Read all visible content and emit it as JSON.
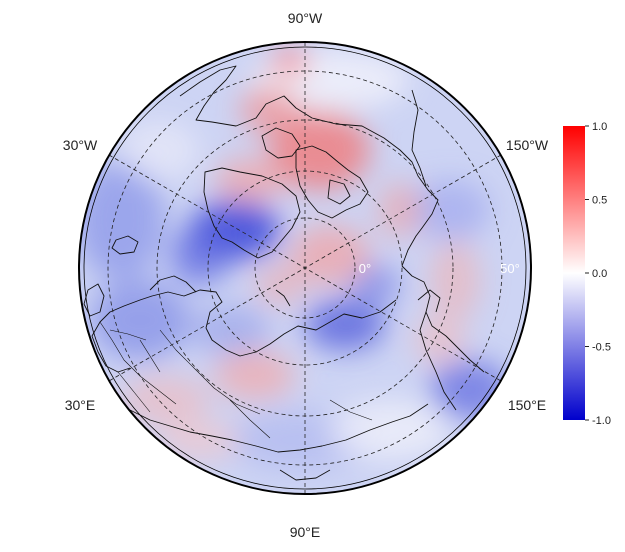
{
  "map": {
    "projection": "north polar stereographic",
    "longitude_labels": {
      "top": "90°W",
      "bottom": "90°E",
      "upper_left": "30°W",
      "upper_right": "150°W",
      "lower_left": "30°E",
      "lower_right": "150°E"
    },
    "latitude_ring_labels": [
      "0°",
      "50°"
    ],
    "field_colors": {
      "low": "#0000cc",
      "mid": "#ffffff",
      "high": "#ff0000"
    }
  },
  "colorbar": {
    "min": -1.0,
    "max": 1.0,
    "tick_labels": [
      "1.0",
      "0.5",
      "0.0",
      "-0.5",
      "-1.0"
    ],
    "tick_values": [
      1.0,
      0.5,
      0.0,
      -0.5,
      -1.0
    ]
  }
}
